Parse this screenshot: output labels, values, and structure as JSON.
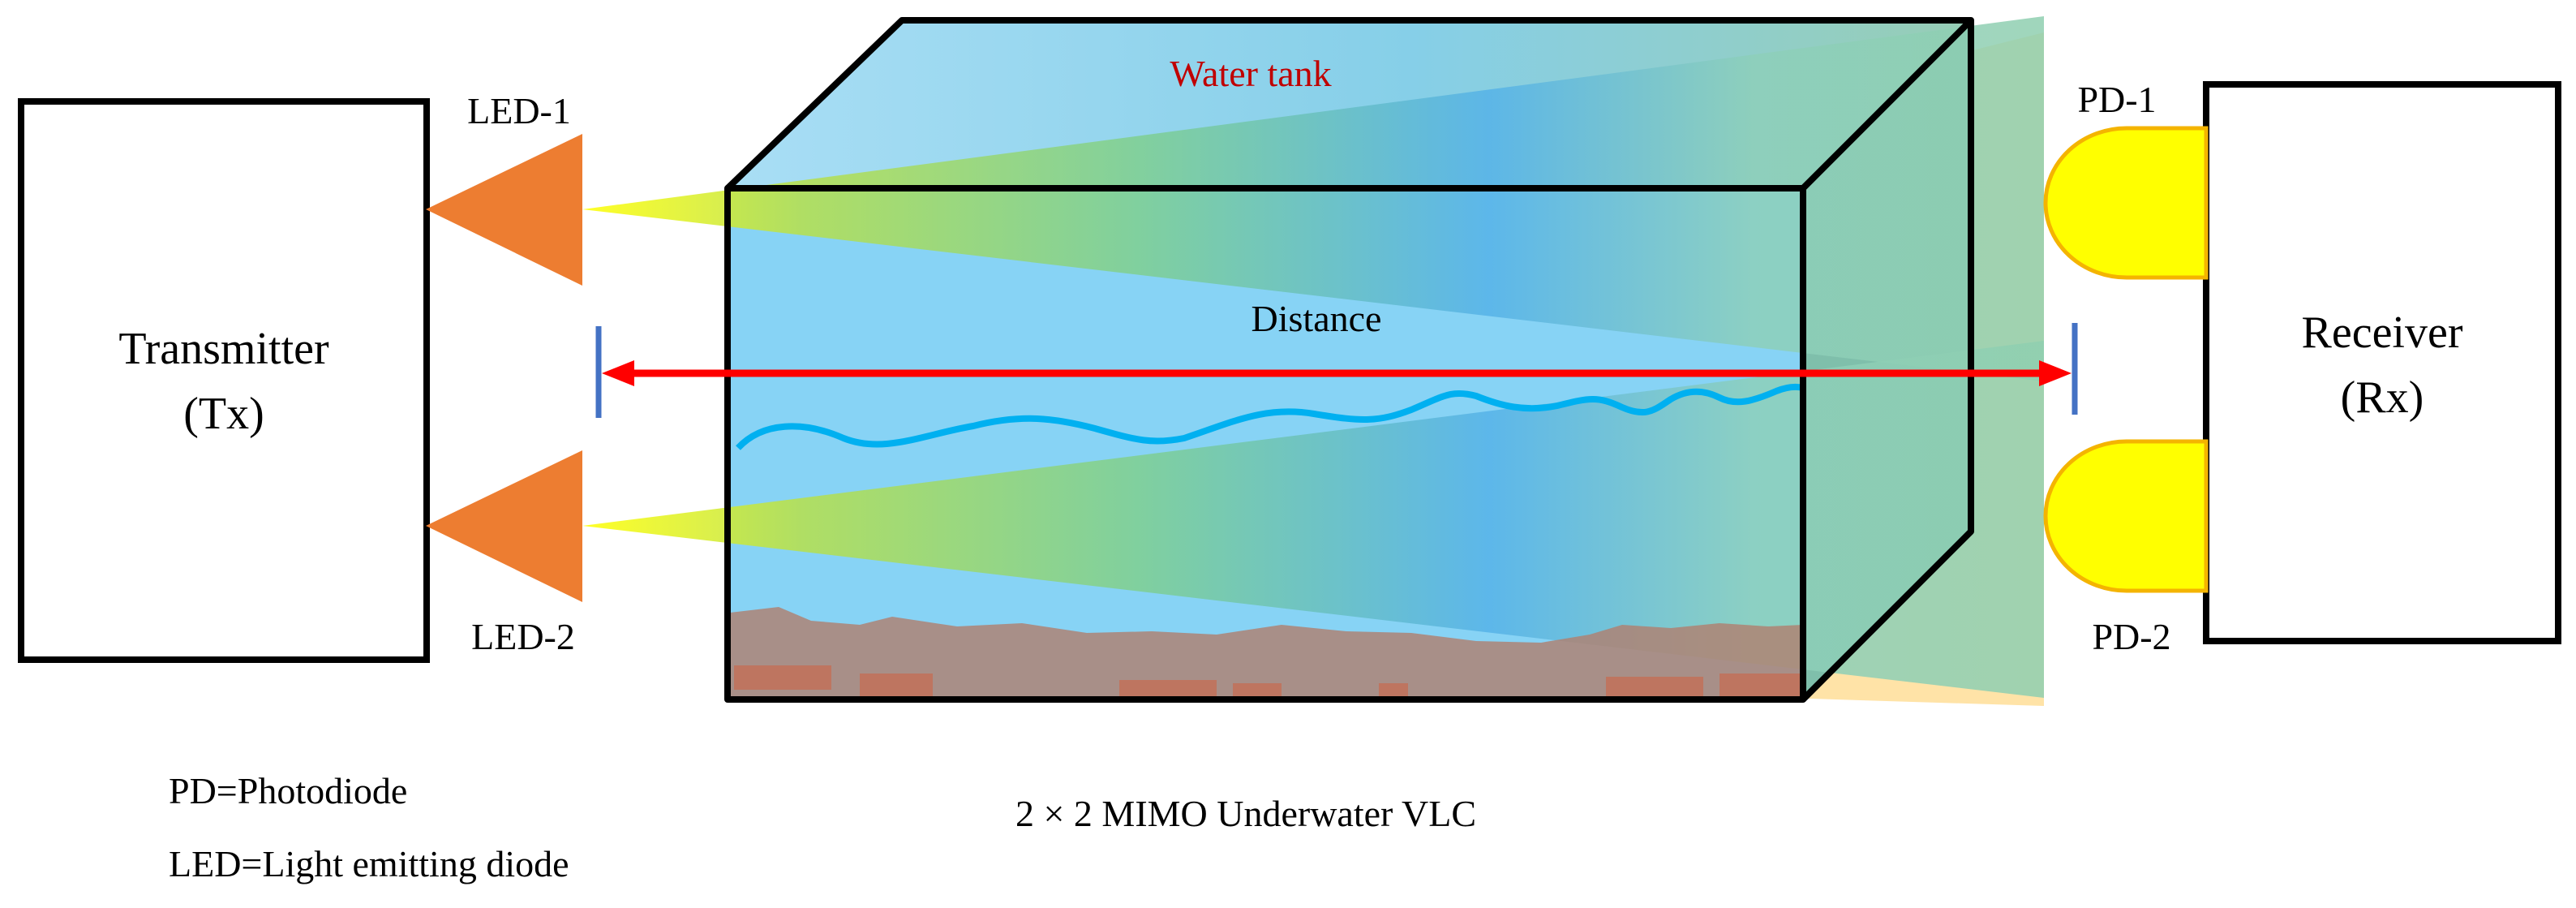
{
  "transmitter": {
    "line1": "Transmitter",
    "line2": "(Tx)"
  },
  "receiver": {
    "line1": "Receiver",
    "line2": "(Rx)"
  },
  "leds": {
    "led1": "LED-1",
    "led2": "LED-2"
  },
  "photodiodes": {
    "pd1": "PD-1",
    "pd2": "PD-2"
  },
  "tank": {
    "label": "Water tank"
  },
  "distance": {
    "label": "Distance"
  },
  "caption": "2 × 2 MIMO Underwater VLC",
  "legend": {
    "pd": "PD=Photodiode",
    "led": "LED=Light emitting diode"
  },
  "colors": {
    "led": "#ed7d31",
    "photodiode": "#ffff00",
    "photodiode_edge": "#f4b400",
    "arrow": "#ff0000",
    "marker": "#4472c4",
    "wave": "#00b0f0",
    "water": "#87d3f5",
    "rx_beam": "#ffd98a",
    "sediment": "#b08070"
  }
}
